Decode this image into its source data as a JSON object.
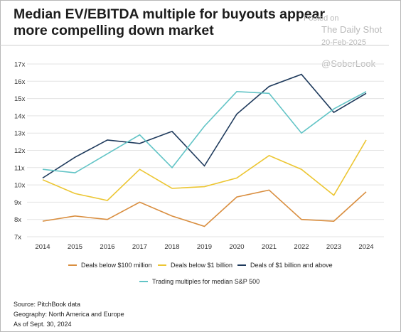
{
  "title": "Median EV/EBITDA multiple for buyouts appear more compelling  down market",
  "watermark": {
    "posted": "Posted on",
    "source": "The Daily Shot",
    "date": "20-Feb-2025",
    "handle": "@SoberLook"
  },
  "footer": {
    "source": "Source: PitchBook data",
    "geography": "Geography: North America and Europe",
    "asof": "As of Sept. 30, 2024"
  },
  "chart_data": {
    "type": "line",
    "title": "Median EV/EBITDA multiple for buyouts appear more compelling  down market",
    "xlabel": "",
    "ylabel": "",
    "x": [
      2014,
      2015,
      2016,
      2017,
      2018,
      2019,
      2020,
      2021,
      2022,
      2023,
      2024
    ],
    "x_tick_labels": [
      "2014",
      "2015",
      "2016",
      "2017",
      "2018",
      "2019",
      "2020",
      "2021",
      "2022",
      "2023",
      "2024"
    ],
    "ylim": [
      7,
      17
    ],
    "y_ticks": [
      7,
      8,
      9,
      10,
      11,
      12,
      13,
      14,
      15,
      16,
      17
    ],
    "y_tick_labels": [
      "7x",
      "8x",
      "9x",
      "10x",
      "11x",
      "12x",
      "13x",
      "14x",
      "15x",
      "16x",
      "17x"
    ],
    "grid": "horizontal",
    "legend_position": "bottom",
    "series": [
      {
        "name": "Deals below $100 million",
        "color": "#d98e3f",
        "values": [
          7.9,
          8.2,
          8.0,
          9.0,
          8.2,
          7.6,
          9.3,
          9.7,
          8.0,
          7.9,
          9.6
        ]
      },
      {
        "name": "Deals below $1 billion",
        "color": "#ecc633",
        "values": [
          10.3,
          9.5,
          9.1,
          10.9,
          9.8,
          9.9,
          10.4,
          11.7,
          10.9,
          9.4,
          12.6
        ]
      },
      {
        "name": "Deals of $1 billion and above",
        "color": "#1e3a5c",
        "values": [
          10.4,
          11.6,
          12.6,
          12.4,
          13.1,
          11.1,
          14.1,
          15.7,
          16.4,
          14.2,
          15.3
        ]
      },
      {
        "name": "Trading multiples for median S&P 500",
        "color": "#62c4c6",
        "values": [
          10.9,
          10.7,
          11.8,
          12.9,
          11.0,
          13.4,
          15.4,
          15.3,
          13.0,
          14.4,
          15.4
        ]
      }
    ]
  }
}
